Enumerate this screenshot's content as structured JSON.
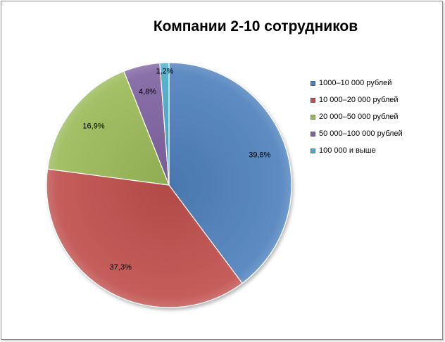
{
  "chart_data": {
    "type": "pie",
    "title": "Компании 2-10 сотрудников",
    "categories": [
      "1000–10 000 рублей",
      "10 000–20 000 рублей",
      "20 000–50 000 рублей",
      "50 000–100 000 рублей",
      "100 000 и выше"
    ],
    "values": [
      39.8,
      37.3,
      16.9,
      4.8,
      1.2
    ],
    "value_labels": [
      "39,8%",
      "37,3%",
      "16,9%",
      "4,8%",
      "1,2%"
    ],
    "colors": [
      "#4f81bd",
      "#c0504d",
      "#9bbb59",
      "#8064a2",
      "#4bacc6"
    ],
    "legend": "right"
  }
}
